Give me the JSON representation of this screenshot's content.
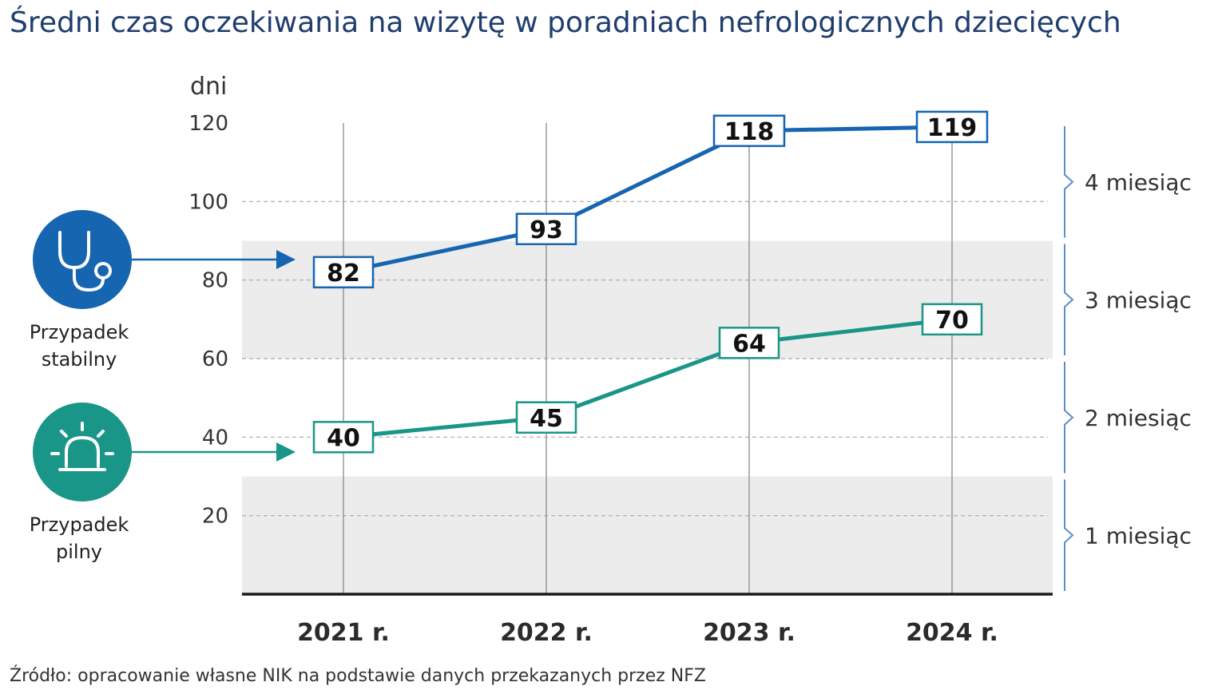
{
  "title": "Średni czas oczekiwania na wizytę w poradniach nefrologicznych dziecięcych",
  "source": "Źródło: opracowanie własne NIK na podstawie danych przekazanych przez NFZ",
  "colors": {
    "stabilny": "#1565b0",
    "pilny": "#1a9688",
    "band": "#ececec",
    "bracket": "#5b8fc9"
  },
  "chart_data": {
    "type": "line",
    "ylabel": "dni",
    "ylim": [
      0,
      120
    ],
    "yticks": [
      "20",
      "40",
      "60",
      "80",
      "100",
      "120"
    ],
    "ytick_values": [
      20,
      40,
      60,
      80,
      100,
      120
    ],
    "categories": [
      "2021 r.",
      "2022 r.",
      "2023 r.",
      "2024 r."
    ],
    "series": [
      {
        "name": "Przypadek stabilny",
        "line1": "Przypadek",
        "line2": "stabilny",
        "icon": "stethoscope-icon",
        "values": [
          82,
          93,
          118,
          119
        ]
      },
      {
        "name": "Przypadek pilny",
        "line1": "Przypadek",
        "line2": "pilny",
        "icon": "siren-icon",
        "values": [
          40,
          45,
          64,
          70
        ]
      }
    ],
    "month_bands": [
      {
        "label": "1 miesiąc",
        "from": 0,
        "to": 30
      },
      {
        "label": "2 miesiąc",
        "from": 30,
        "to": 60
      },
      {
        "label": "3 miesiąc",
        "from": 60,
        "to": 90
      },
      {
        "label": "4 miesiąc",
        "from": 90,
        "to": 120
      }
    ],
    "grid": true
  }
}
